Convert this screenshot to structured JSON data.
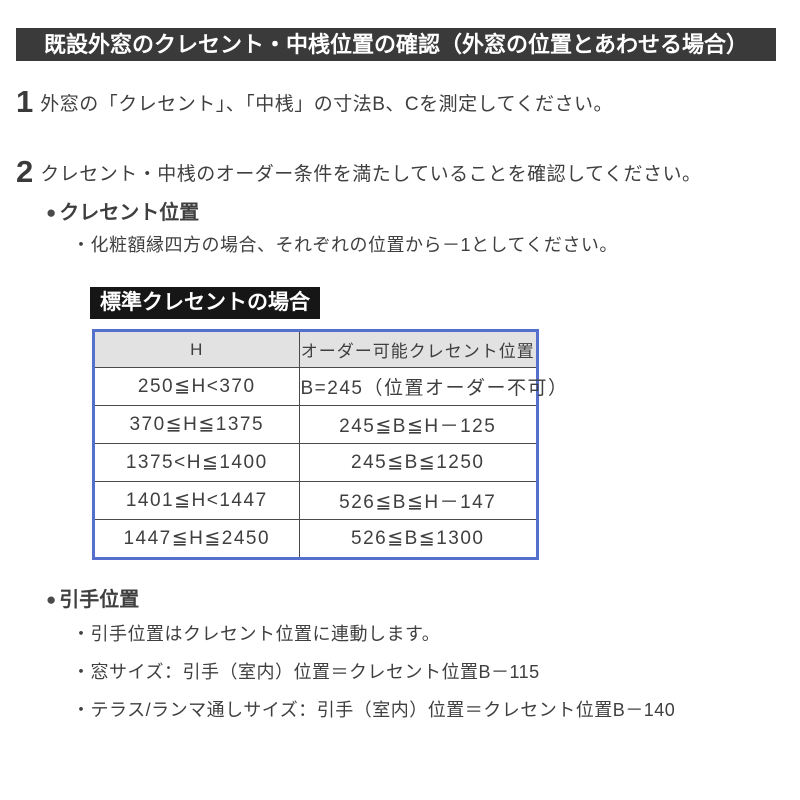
{
  "page": {
    "title": "既設外窓のクレセント・中桟位置の確認（外窓の位置とあわせる場合）"
  },
  "steps": {
    "step1": {
      "number": "1",
      "text": "外窓の「クレセント」、「中桟」の寸法B、Cを測定してください。"
    },
    "step2": {
      "number": "2",
      "text": "クレセント・中桟のオーダー条件を満たしていることを確認してください。"
    }
  },
  "crescent_section": {
    "bullet": "●",
    "label": "クレセント位置",
    "note": "・化粧額縁四方の場合、それぞれの位置から－1としてください。"
  },
  "standard_crescent": {
    "label": "標準クレセントの場合",
    "table": {
      "headers": [
        "H",
        "オーダー可能クレセント位置"
      ],
      "rows": [
        [
          "250≦H<370",
          "B=245（位置オーダー不可）"
        ],
        [
          "370≦H≦1375",
          "245≦B≦H－125"
        ],
        [
          "1375<H≦1400",
          "245≦B≦1250"
        ],
        [
          "1401≦H<1447",
          "526≦B≦H－147"
        ],
        [
          "1447≦H≦2450",
          "526≦B≦1300"
        ]
      ]
    }
  },
  "handle_section": {
    "bullet": "●",
    "label": "引手位置",
    "notes": [
      "・引手位置はクレセント位置に連動します。",
      "・窓サイズ：引手（室内）位置＝クレセント位置B－115",
      "・テラス/ランマ通しサイズ：引手（室内）位置＝クレセント位置B－140"
    ]
  },
  "colors": {
    "bar_bg": "#3a3a3a",
    "label_bg": "#161616",
    "table_border": "#5570cc",
    "table_header_bg": "#e2e2e2",
    "text": "#3f3f3f"
  }
}
